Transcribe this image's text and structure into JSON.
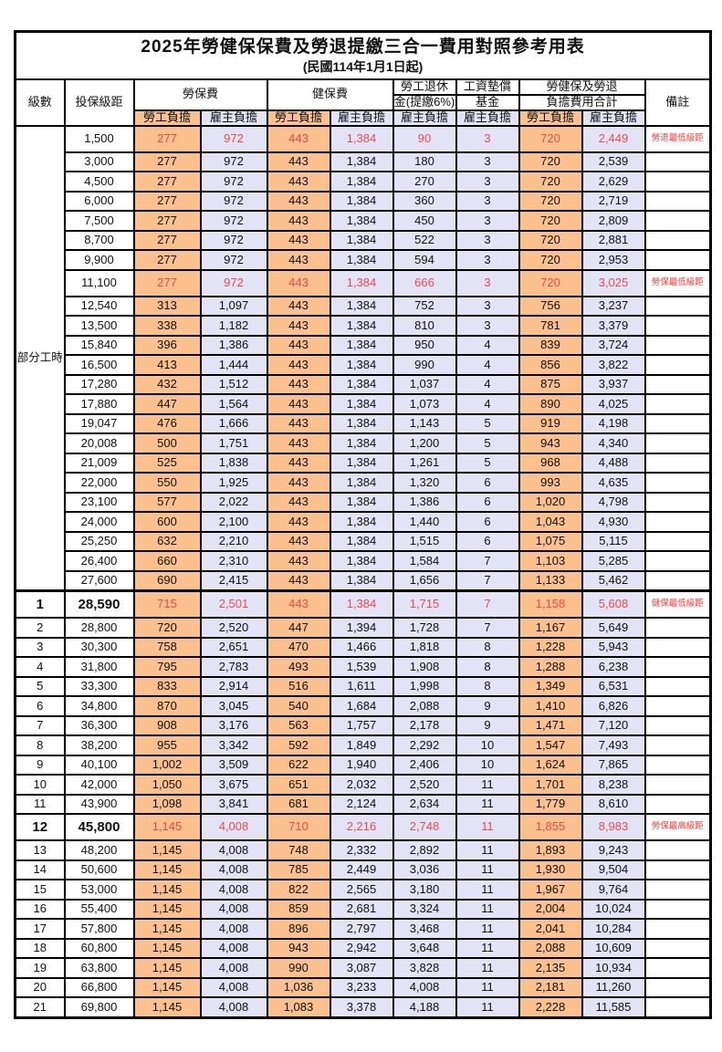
{
  "title": "2025年勞健保保費及勞退提繳三合一費用對照參考用表",
  "subtitle": "(民國114年1月1日起)",
  "columns": {
    "level": "級數",
    "bracket": "投保級距",
    "labor": "勞保費",
    "health": "健保費",
    "pension_line1": "勞工退休",
    "pension_line2": "金(提繳6%)",
    "wage_fund_line1": "工資墊償",
    "wage_fund_line2": "基金",
    "total_line1": "勞健保及勞退",
    "total_line2": "負擔費用合計",
    "employee": "勞工負擔",
    "employer": "雇主負擔",
    "note": "備註"
  },
  "part_time_label": "部分工時",
  "colors": {
    "employee_bg": "#FAC08E",
    "employer_bg": "#E2E3F5",
    "highlight_text": "#F04A4A",
    "note_text": "#FF3A3A"
  },
  "rows": [
    {
      "level": "",
      "bracket": "1,500",
      "values": [
        "277",
        "972",
        "443",
        "1,384",
        "90",
        "3",
        "720",
        "2,449"
      ],
      "note": "勞退最低級距",
      "highlight": true,
      "bold": false
    },
    {
      "level": "",
      "bracket": "3,000",
      "values": [
        "277",
        "972",
        "443",
        "1,384",
        "180",
        "3",
        "720",
        "2,539"
      ],
      "note": "",
      "highlight": false,
      "bold": false
    },
    {
      "level": "",
      "bracket": "4,500",
      "values": [
        "277",
        "972",
        "443",
        "1,384",
        "270",
        "3",
        "720",
        "2,629"
      ],
      "note": "",
      "highlight": false,
      "bold": false
    },
    {
      "level": "",
      "bracket": "6,000",
      "values": [
        "277",
        "972",
        "443",
        "1,384",
        "360",
        "3",
        "720",
        "2,719"
      ],
      "note": "",
      "highlight": false,
      "bold": false
    },
    {
      "level": "",
      "bracket": "7,500",
      "values": [
        "277",
        "972",
        "443",
        "1,384",
        "450",
        "3",
        "720",
        "2,809"
      ],
      "note": "",
      "highlight": false,
      "bold": false
    },
    {
      "level": "",
      "bracket": "8,700",
      "values": [
        "277",
        "972",
        "443",
        "1,384",
        "522",
        "3",
        "720",
        "2,881"
      ],
      "note": "",
      "highlight": false,
      "bold": false
    },
    {
      "level": "",
      "bracket": "9,900",
      "values": [
        "277",
        "972",
        "443",
        "1,384",
        "594",
        "3",
        "720",
        "2,953"
      ],
      "note": "",
      "highlight": false,
      "bold": false
    },
    {
      "level": "",
      "bracket": "11,100",
      "values": [
        "277",
        "972",
        "443",
        "1,384",
        "666",
        "3",
        "720",
        "3,025"
      ],
      "note": "勞保最低級距",
      "highlight": true,
      "bold": false
    },
    {
      "level": "",
      "bracket": "12,540",
      "values": [
        "313",
        "1,097",
        "443",
        "1,384",
        "752",
        "3",
        "756",
        "3,237"
      ],
      "note": "",
      "highlight": false,
      "bold": false
    },
    {
      "level": "",
      "bracket": "13,500",
      "values": [
        "338",
        "1,182",
        "443",
        "1,384",
        "810",
        "3",
        "781",
        "3,379"
      ],
      "note": "",
      "highlight": false,
      "bold": false
    },
    {
      "level": "",
      "bracket": "15,840",
      "values": [
        "396",
        "1,386",
        "443",
        "1,384",
        "950",
        "4",
        "839",
        "3,724"
      ],
      "note": "",
      "highlight": false,
      "bold": false
    },
    {
      "level": "",
      "bracket": "16,500",
      "values": [
        "413",
        "1,444",
        "443",
        "1,384",
        "990",
        "4",
        "856",
        "3,822"
      ],
      "note": "",
      "highlight": false,
      "bold": false
    },
    {
      "level": "",
      "bracket": "17,280",
      "values": [
        "432",
        "1,512",
        "443",
        "1,384",
        "1,037",
        "4",
        "875",
        "3,937"
      ],
      "note": "",
      "highlight": false,
      "bold": false
    },
    {
      "level": "",
      "bracket": "17,880",
      "values": [
        "447",
        "1,564",
        "443",
        "1,384",
        "1,073",
        "4",
        "890",
        "4,025"
      ],
      "note": "",
      "highlight": false,
      "bold": false
    },
    {
      "level": "",
      "bracket": "19,047",
      "values": [
        "476",
        "1,666",
        "443",
        "1,384",
        "1,143",
        "5",
        "919",
        "4,198"
      ],
      "note": "",
      "highlight": false,
      "bold": false
    },
    {
      "level": "",
      "bracket": "20,008",
      "values": [
        "500",
        "1,751",
        "443",
        "1,384",
        "1,200",
        "5",
        "943",
        "4,340"
      ],
      "note": "",
      "highlight": false,
      "bold": false
    },
    {
      "level": "",
      "bracket": "21,009",
      "values": [
        "525",
        "1,838",
        "443",
        "1,384",
        "1,261",
        "5",
        "968",
        "4,488"
      ],
      "note": "",
      "highlight": false,
      "bold": false
    },
    {
      "level": "",
      "bracket": "22,000",
      "values": [
        "550",
        "1,925",
        "443",
        "1,384",
        "1,320",
        "6",
        "993",
        "4,635"
      ],
      "note": "",
      "highlight": false,
      "bold": false
    },
    {
      "level": "",
      "bracket": "23,100",
      "values": [
        "577",
        "2,022",
        "443",
        "1,384",
        "1,386",
        "6",
        "1,020",
        "4,798"
      ],
      "note": "",
      "highlight": false,
      "bold": false
    },
    {
      "level": "",
      "bracket": "24,000",
      "values": [
        "600",
        "2,100",
        "443",
        "1,384",
        "1,440",
        "6",
        "1,043",
        "4,930"
      ],
      "note": "",
      "highlight": false,
      "bold": false
    },
    {
      "level": "",
      "bracket": "25,250",
      "values": [
        "632",
        "2,210",
        "443",
        "1,384",
        "1,515",
        "6",
        "1,075",
        "5,115"
      ],
      "note": "",
      "highlight": false,
      "bold": false
    },
    {
      "level": "",
      "bracket": "26,400",
      "values": [
        "660",
        "2,310",
        "443",
        "1,384",
        "1,584",
        "7",
        "1,103",
        "5,285"
      ],
      "note": "",
      "highlight": false,
      "bold": false
    },
    {
      "level": "",
      "bracket": "27,600",
      "values": [
        "690",
        "2,415",
        "443",
        "1,384",
        "1,656",
        "7",
        "1,133",
        "5,462"
      ],
      "note": "",
      "highlight": false,
      "bold": false
    },
    {
      "level": "1",
      "bracket": "28,590",
      "values": [
        "715",
        "2,501",
        "443",
        "1,384",
        "1,715",
        "7",
        "1,158",
        "5,608"
      ],
      "note": "健保最低級距",
      "highlight": true,
      "bold": true
    },
    {
      "level": "2",
      "bracket": "28,800",
      "values": [
        "720",
        "2,520",
        "447",
        "1,394",
        "1,728",
        "7",
        "1,167",
        "5,649"
      ],
      "note": "",
      "highlight": false,
      "bold": false
    },
    {
      "level": "3",
      "bracket": "30,300",
      "values": [
        "758",
        "2,651",
        "470",
        "1,466",
        "1,818",
        "8",
        "1,228",
        "5,943"
      ],
      "note": "",
      "highlight": false,
      "bold": false
    },
    {
      "level": "4",
      "bracket": "31,800",
      "values": [
        "795",
        "2,783",
        "493",
        "1,539",
        "1,908",
        "8",
        "1,288",
        "6,238"
      ],
      "note": "",
      "highlight": false,
      "bold": false
    },
    {
      "level": "5",
      "bracket": "33,300",
      "values": [
        "833",
        "2,914",
        "516",
        "1,611",
        "1,998",
        "8",
        "1,349",
        "6,531"
      ],
      "note": "",
      "highlight": false,
      "bold": false
    },
    {
      "level": "6",
      "bracket": "34,800",
      "values": [
        "870",
        "3,045",
        "540",
        "1,684",
        "2,088",
        "9",
        "1,410",
        "6,826"
      ],
      "note": "",
      "highlight": false,
      "bold": false
    },
    {
      "level": "7",
      "bracket": "36,300",
      "values": [
        "908",
        "3,176",
        "563",
        "1,757",
        "2,178",
        "9",
        "1,471",
        "7,120"
      ],
      "note": "",
      "highlight": false,
      "bold": false
    },
    {
      "level": "8",
      "bracket": "38,200",
      "values": [
        "955",
        "3,342",
        "592",
        "1,849",
        "2,292",
        "10",
        "1,547",
        "7,493"
      ],
      "note": "",
      "highlight": false,
      "bold": false
    },
    {
      "level": "9",
      "bracket": "40,100",
      "values": [
        "1,002",
        "3,509",
        "622",
        "1,940",
        "2,406",
        "10",
        "1,624",
        "7,865"
      ],
      "note": "",
      "highlight": false,
      "bold": false
    },
    {
      "level": "10",
      "bracket": "42,000",
      "values": [
        "1,050",
        "3,675",
        "651",
        "2,032",
        "2,520",
        "11",
        "1,701",
        "8,238"
      ],
      "note": "",
      "highlight": false,
      "bold": false
    },
    {
      "level": "11",
      "bracket": "43,900",
      "values": [
        "1,098",
        "3,841",
        "681",
        "2,124",
        "2,634",
        "11",
        "1,779",
        "8,610"
      ],
      "note": "",
      "highlight": false,
      "bold": false
    },
    {
      "level": "12",
      "bracket": "45,800",
      "values": [
        "1,145",
        "4,008",
        "710",
        "2,216",
        "2,748",
        "11",
        "1,855",
        "8,983"
      ],
      "note": "勞保最高級距",
      "highlight": true,
      "bold": true
    },
    {
      "level": "13",
      "bracket": "48,200",
      "values": [
        "1,145",
        "4,008",
        "748",
        "2,332",
        "2,892",
        "11",
        "1,893",
        "9,243"
      ],
      "note": "",
      "highlight": false,
      "bold": false
    },
    {
      "level": "14",
      "bracket": "50,600",
      "values": [
        "1,145",
        "4,008",
        "785",
        "2,449",
        "3,036",
        "11",
        "1,930",
        "9,504"
      ],
      "note": "",
      "highlight": false,
      "bold": false
    },
    {
      "level": "15",
      "bracket": "53,000",
      "values": [
        "1,145",
        "4,008",
        "822",
        "2,565",
        "3,180",
        "11",
        "1,967",
        "9,764"
      ],
      "note": "",
      "highlight": false,
      "bold": false
    },
    {
      "level": "16",
      "bracket": "55,400",
      "values": [
        "1,145",
        "4,008",
        "859",
        "2,681",
        "3,324",
        "11",
        "2,004",
        "10,024"
      ],
      "note": "",
      "highlight": false,
      "bold": false
    },
    {
      "level": "17",
      "bracket": "57,800",
      "values": [
        "1,145",
        "4,008",
        "896",
        "2,797",
        "3,468",
        "11",
        "2,041",
        "10,284"
      ],
      "note": "",
      "highlight": false,
      "bold": false
    },
    {
      "level": "18",
      "bracket": "60,800",
      "values": [
        "1,145",
        "4,008",
        "943",
        "2,942",
        "3,648",
        "11",
        "2,088",
        "10,609"
      ],
      "note": "",
      "highlight": false,
      "bold": false
    },
    {
      "level": "19",
      "bracket": "63,800",
      "values": [
        "1,145",
        "4,008",
        "990",
        "3,087",
        "3,828",
        "11",
        "2,135",
        "10,934"
      ],
      "note": "",
      "highlight": false,
      "bold": false
    },
    {
      "level": "20",
      "bracket": "66,800",
      "values": [
        "1,145",
        "4,008",
        "1,036",
        "3,233",
        "4,008",
        "11",
        "2,181",
        "11,260"
      ],
      "note": "",
      "highlight": false,
      "bold": false
    },
    {
      "level": "21",
      "bracket": "69,800",
      "values": [
        "1,145",
        "4,008",
        "1,083",
        "3,378",
        "4,188",
        "11",
        "2,228",
        "11,585"
      ],
      "note": "",
      "highlight": false,
      "bold": false
    }
  ]
}
